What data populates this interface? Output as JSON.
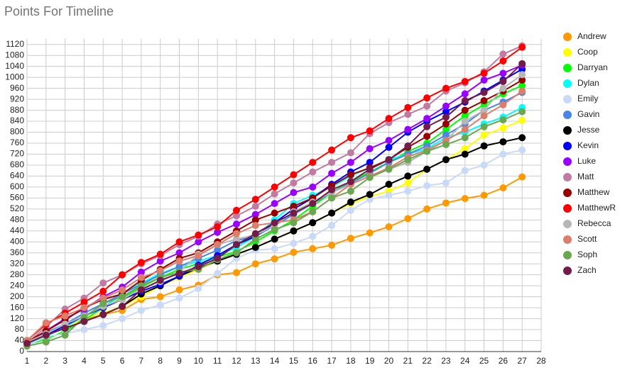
{
  "chart_data": {
    "type": "line",
    "title": "Points For Timeline",
    "x": [
      1,
      2,
      3,
      4,
      5,
      6,
      7,
      8,
      9,
      10,
      11,
      12,
      13,
      14,
      15,
      16,
      17,
      18,
      19,
      20,
      21,
      22,
      23,
      24,
      25,
      26,
      27
    ],
    "xlim": [
      1,
      28
    ],
    "xticks": [
      1,
      2,
      3,
      4,
      5,
      6,
      7,
      8,
      9,
      10,
      11,
      12,
      13,
      14,
      15,
      16,
      17,
      18,
      19,
      20,
      21,
      22,
      23,
      24,
      25,
      26,
      27,
      28
    ],
    "ylim": [
      0,
      1140
    ],
    "yticks": [
      0,
      40,
      80,
      120,
      160,
      200,
      240,
      280,
      320,
      360,
      400,
      440,
      480,
      520,
      560,
      600,
      640,
      680,
      720,
      760,
      800,
      840,
      880,
      920,
      960,
      1000,
      1040,
      1080,
      1120
    ],
    "grid": true,
    "legend": "right",
    "series": [
      {
        "name": "Andrew",
        "color": "#ff9900",
        "values": [
          30,
          70,
          95,
          115,
          135,
          150,
          190,
          200,
          225,
          242,
          280,
          288,
          320,
          338,
          362,
          375,
          388,
          413,
          433,
          455,
          485,
          520,
          542,
          558,
          570,
          597,
          637
        ]
      },
      {
        "name": "Coop",
        "color": "#ffff00",
        "values": [
          40,
          60,
          90,
          120,
          140,
          165,
          200,
          240,
          270,
          300,
          330,
          355,
          380,
          410,
          440,
          470,
          505,
          540,
          565,
          585,
          615,
          665,
          700,
          740,
          790,
          815,
          843
        ]
      },
      {
        "name": "Darryan",
        "color": "#00ff00",
        "values": [
          25,
          45,
          75,
          115,
          160,
          195,
          235,
          270,
          300,
          320,
          345,
          365,
          400,
          440,
          480,
          530,
          580,
          620,
          655,
          690,
          730,
          760,
          810,
          860,
          900,
          940,
          970
        ]
      },
      {
        "name": "Dylan",
        "color": "#00ffff",
        "values": [
          30,
          55,
          90,
          130,
          160,
          210,
          250,
          285,
          310,
          330,
          350,
          380,
          420,
          480,
          540,
          570,
          600,
          640,
          670,
          700,
          720,
          740,
          780,
          800,
          830,
          855,
          890
        ]
      },
      {
        "name": "Emily",
        "color": "#c9daf8",
        "values": [
          20,
          55,
          65,
          80,
          95,
          120,
          150,
          170,
          195,
          230,
          285,
          340,
          370,
          375,
          395,
          420,
          460,
          515,
          555,
          570,
          585,
          605,
          615,
          660,
          680,
          720,
          735
        ]
      },
      {
        "name": "Gavin",
        "color": "#4a86e8",
        "values": [
          30,
          70,
          100,
          140,
          175,
          210,
          245,
          280,
          310,
          340,
          370,
          405,
          420,
          460,
          500,
          540,
          580,
          615,
          650,
          690,
          720,
          750,
          790,
          830,
          880,
          910,
          945
        ]
      },
      {
        "name": "Jesse",
        "color": "#000000",
        "values": [
          40,
          60,
          85,
          110,
          135,
          165,
          210,
          240,
          275,
          305,
          330,
          355,
          380,
          410,
          440,
          470,
          505,
          545,
          573,
          610,
          640,
          665,
          700,
          720,
          750,
          765,
          780
        ]
      },
      {
        "name": "Kevin",
        "color": "#0000ff",
        "values": [
          30,
          60,
          95,
          130,
          160,
          190,
          220,
          245,
          275,
          315,
          350,
          390,
          420,
          470,
          520,
          560,
          610,
          655,
          690,
          745,
          800,
          840,
          875,
          910,
          950,
          990,
          1030
        ]
      },
      {
        "name": "Luke",
        "color": "#9900ff",
        "values": [
          35,
          75,
          120,
          155,
          200,
          235,
          290,
          330,
          360,
          400,
          435,
          465,
          500,
          540,
          580,
          600,
          650,
          690,
          740,
          770,
          810,
          850,
          895,
          940,
          990,
          1015,
          1045
        ]
      },
      {
        "name": "Matt",
        "color": "#c27ba0",
        "values": [
          30,
          90,
          155,
          195,
          250,
          280,
          320,
          350,
          390,
          420,
          465,
          495,
          530,
          575,
          615,
          655,
          690,
          725,
          795,
          835,
          865,
          895,
          950,
          980,
          1020,
          1085,
          1115
        ]
      },
      {
        "name": "Matthew",
        "color": "#990000",
        "values": [
          35,
          75,
          115,
          160,
          190,
          210,
          260,
          300,
          340,
          360,
          400,
          440,
          480,
          505,
          530,
          560,
          605,
          645,
          670,
          700,
          745,
          785,
          830,
          880,
          915,
          950,
          990
        ]
      },
      {
        "name": "MatthewR",
        "color": "#ff0000",
        "values": [
          40,
          100,
          140,
          180,
          220,
          280,
          325,
          355,
          400,
          425,
          455,
          515,
          555,
          600,
          645,
          690,
          735,
          780,
          805,
          850,
          890,
          925,
          960,
          985,
          1015,
          1060,
          1110
        ]
      },
      {
        "name": "Rebecca",
        "color": "#b7b7b7",
        "values": [
          35,
          65,
          100,
          130,
          165,
          190,
          230,
          255,
          290,
          355,
          390,
          410,
          425,
          460,
          510,
          545,
          580,
          610,
          640,
          665,
          690,
          730,
          770,
          840,
          880,
          960,
          1010
        ]
      },
      {
        "name": "Scott",
        "color": "#dd7e6b",
        "values": [
          40,
          105,
          130,
          160,
          195,
          225,
          270,
          295,
          330,
          350,
          390,
          430,
          460,
          470,
          480,
          510,
          560,
          610,
          640,
          670,
          710,
          735,
          770,
          810,
          860,
          900,
          950
        ]
      },
      {
        "name": "Soph",
        "color": "#6aa84f",
        "values": [
          20,
          35,
          60,
          125,
          175,
          200,
          240,
          270,
          290,
          300,
          335,
          360,
          410,
          445,
          470,
          510,
          560,
          585,
          635,
          665,
          700,
          730,
          755,
          780,
          820,
          845,
          875
        ]
      },
      {
        "name": "Zach",
        "color": "#741b47",
        "values": [
          30,
          60,
          85,
          110,
          135,
          165,
          225,
          260,
          285,
          310,
          340,
          390,
          430,
          470,
          505,
          540,
          590,
          620,
          665,
          700,
          750,
          820,
          855,
          915,
          945,
          985,
          1050
        ]
      }
    ]
  }
}
